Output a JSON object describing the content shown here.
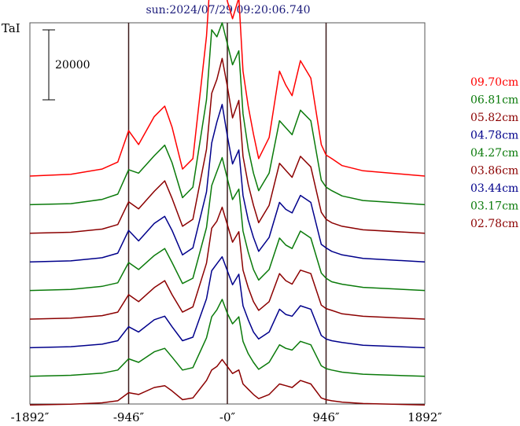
{
  "chart_data": {
    "type": "line",
    "title": "sun:2024/07/29 09:20:06.740",
    "ylabel": "TaI",
    "scale_bar_label": "20000",
    "scale_bar_value": 20000,
    "xlim": [
      -1892,
      1892
    ],
    "x_ticks": [
      {
        "value": -1892,
        "label": "-1892″"
      },
      {
        "value": -946,
        "label": "-946″"
      },
      {
        "value": 0,
        "label": "-0″"
      },
      {
        "value": 946,
        "label": "946″"
      },
      {
        "value": 1892,
        "label": "1892″"
      }
    ],
    "vertical_lines": [
      -946,
      0,
      946
    ],
    "grid": false,
    "legend_position": "right",
    "profile_x": [
      -1892,
      -1500,
      -1200,
      -1050,
      -946,
      -850,
      -700,
      -600,
      -530,
      -430,
      -330,
      -200,
      -150,
      -100,
      -50,
      0,
      50,
      110,
      150,
      200,
      250,
      300,
      400,
      500,
      560,
      620,
      700,
      800,
      900,
      946,
      1000,
      1100,
      1300,
      1892
    ],
    "series": [
      {
        "name": "09.70cm",
        "color": "#ff0000",
        "baseline": 0,
        "values": [
          0,
          500,
          2000,
          4000,
          13000,
          9000,
          17000,
          20000,
          14000,
          2000,
          5000,
          40000,
          63000,
          62000,
          60000,
          50000,
          45000,
          51000,
          30000,
          20000,
          12000,
          5000,
          11000,
          30000,
          26000,
          23000,
          33000,
          28000,
          9000,
          6000,
          5000,
          3000,
          1500,
          0
        ]
      },
      {
        "name": "06.81cm",
        "color": "#0a7a0a",
        "baseline": 0,
        "values": [
          0,
          300,
          1500,
          3000,
          10000,
          9000,
          14000,
          17000,
          12000,
          2000,
          5000,
          30000,
          50000,
          48000,
          52000,
          46000,
          40000,
          44000,
          26000,
          16000,
          9000,
          4000,
          9000,
          24000,
          22000,
          20000,
          27000,
          24000,
          7000,
          5000,
          4000,
          2500,
          1200,
          0
        ]
      },
      {
        "name": "05.82cm",
        "color": "#8b0000",
        "baseline": 0,
        "values": [
          0,
          300,
          1200,
          2500,
          9000,
          7000,
          12000,
          15000,
          10000,
          2000,
          4000,
          24000,
          40000,
          44000,
          50000,
          42000,
          33000,
          38000,
          22000,
          14000,
          8000,
          3000,
          8000,
          20000,
          18000,
          16000,
          22000,
          19000,
          6000,
          4000,
          3000,
          2000,
          1000,
          0
        ]
      },
      {
        "name": "04.78cm",
        "color": "#00008b",
        "baseline": 0,
        "values": [
          0,
          300,
          1200,
          2500,
          9000,
          6000,
          11000,
          13000,
          9000,
          2000,
          4000,
          20000,
          34000,
          40000,
          45000,
          36000,
          28000,
          32000,
          19000,
          12000,
          7000,
          3000,
          7000,
          17000,
          15000,
          14000,
          19000,
          17000,
          5000,
          4000,
          3000,
          2000,
          1000,
          0
        ]
      },
      {
        "name": "04.27cm",
        "color": "#0a7a0a",
        "baseline": 0,
        "values": [
          0,
          300,
          1200,
          2200,
          8000,
          6000,
          10000,
          12000,
          8000,
          2000,
          3500,
          18000,
          30000,
          34000,
          38000,
          32000,
          26000,
          29000,
          17000,
          11000,
          6000,
          3000,
          6000,
          15000,
          13000,
          12000,
          17000,
          15000,
          5000,
          3500,
          2500,
          1800,
          900,
          0
        ]
      },
      {
        "name": "03.86cm",
        "color": "#8b0000",
        "baseline": 0,
        "values": [
          0,
          300,
          1000,
          2000,
          7000,
          5000,
          9000,
          11000,
          7000,
          2000,
          3500,
          16000,
          26000,
          28000,
          32000,
          27000,
          22000,
          25000,
          14000,
          9000,
          5000,
          2500,
          5000,
          13000,
          11000,
          10000,
          14000,
          13000,
          4000,
          3000,
          2500,
          1500,
          800,
          0
        ]
      },
      {
        "name": "03.44cm",
        "color": "#00008b",
        "baseline": 0,
        "values": [
          0,
          300,
          1000,
          2000,
          6000,
          4500,
          8000,
          9000,
          6000,
          2000,
          3000,
          14000,
          22000,
          24000,
          26000,
          22000,
          18000,
          21000,
          12000,
          8000,
          4500,
          2500,
          4500,
          11000,
          9500,
          9000,
          12000,
          11000,
          3500,
          2500,
          2000,
          1500,
          700,
          0
        ]
      },
      {
        "name": "03.17cm",
        "color": "#0a7a0a",
        "baseline": 0,
        "values": [
          0,
          300,
          900,
          1800,
          5000,
          4000,
          7000,
          8000,
          5500,
          1800,
          2500,
          11000,
          17000,
          19000,
          22000,
          18000,
          15000,
          17000,
          10000,
          6500,
          4000,
          2000,
          4000,
          9000,
          8000,
          7500,
          10000,
          9000,
          3000,
          2200,
          1800,
          1200,
          600,
          0
        ]
      },
      {
        "name": "02.78cm",
        "color": "#8b0000",
        "baseline": 0,
        "values": [
          0,
          200,
          600,
          1200,
          3500,
          3000,
          5000,
          5500,
          4000,
          1500,
          2000,
          7000,
          10000,
          11000,
          13000,
          11000,
          9000,
          10000,
          6000,
          4500,
          3000,
          1800,
          3000,
          6000,
          5500,
          5000,
          7000,
          6000,
          2000,
          1500,
          1200,
          800,
          400,
          0
        ]
      }
    ]
  }
}
